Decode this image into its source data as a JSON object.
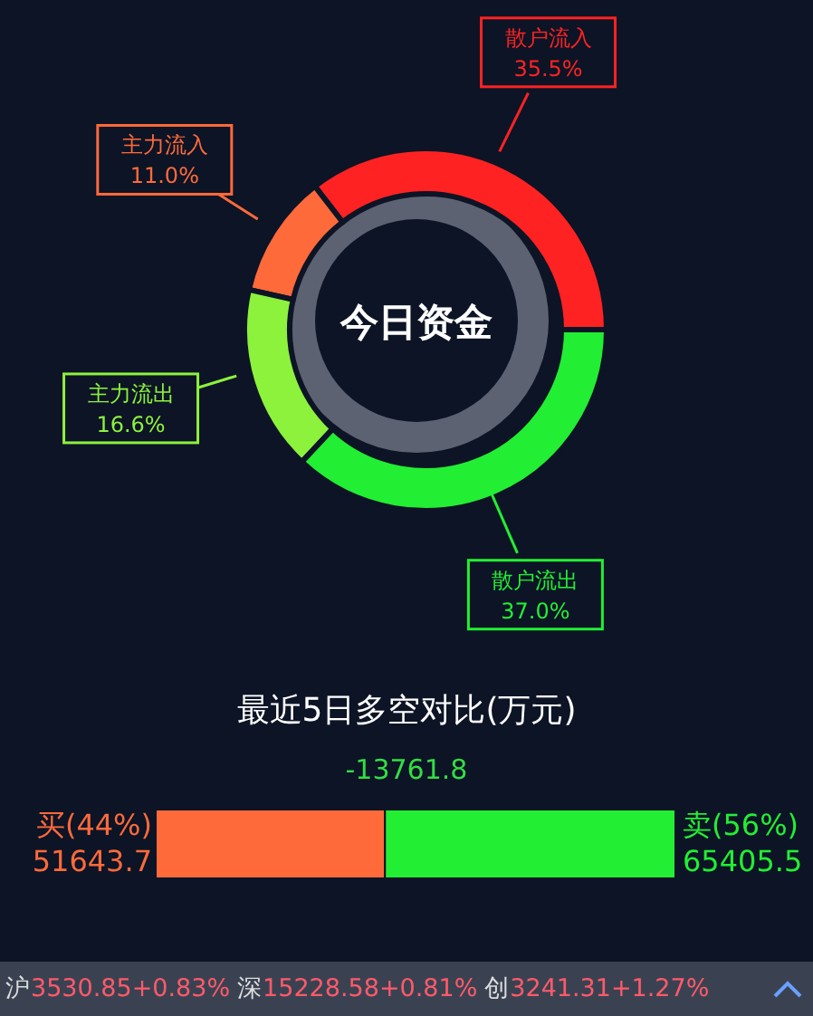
{
  "chart_data": [
    {
      "type": "donut",
      "title": "今日资金",
      "categories": [
        "散户流入",
        "主力流入",
        "主力流出",
        "散户流出"
      ],
      "values": [
        35.5,
        11.0,
        16.6,
        37.0
      ],
      "colors": [
        "#ff2222",
        "#ff6a3a",
        "#8cf23c",
        "#22ee33"
      ],
      "value_labels": [
        "35.5%",
        "11.0%",
        "16.6%",
        "37.0%"
      ]
    },
    {
      "type": "bar",
      "orientation": "horizontal",
      "stacked": true,
      "title": "最近5日多空对比(万元)",
      "categories": [
        null
      ],
      "series": [
        {
          "name": "买(44%)",
          "color": "#ff6a3a",
          "values": [
            51643.7
          ]
        },
        {
          "name": "卖(56%)",
          "color": "#22ee33",
          "values": [
            65405.5
          ]
        }
      ],
      "data_labels": true,
      "annotations": [
        "-13761.8",
        "沪3530.85+0.83%",
        "深15228.58+0.81%",
        "创3241.31+1.27%"
      ]
    }
  ]
}
